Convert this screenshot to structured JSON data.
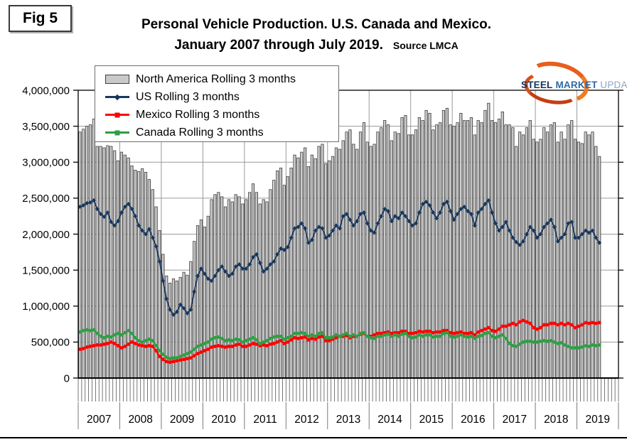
{
  "figure": {
    "label": "Fig 5"
  },
  "title": {
    "line1": "Personal Vehicle Production. U.S. Canada and Mexico.",
    "line2": "January 2007 through July 2019.",
    "source": "Source LMCA"
  },
  "logo": {
    "word1": "STEEL",
    "word2": "MARKET",
    "word3": "UPDATE",
    "navy": "#15335f",
    "blue": "#2f6aa8",
    "light_blue": "#8ea6c4",
    "orange": "#e95d1d",
    "dark_orange": "#c43e14"
  },
  "chart_data": {
    "type": "bar",
    "title": "Personal Vehicle Production. U.S. Canada and Mexico. January 2007 through July 2019.",
    "xlabel": "",
    "ylabel": "",
    "grid": true,
    "legend_position": "top-left",
    "ylim": [
      0,
      4000000
    ],
    "x_years": [
      "2007",
      "2008",
      "2009",
      "2010",
      "2011",
      "2012",
      "2013",
      "2014",
      "2015",
      "2016",
      "2017",
      "2018",
      "2019"
    ],
    "months_start": "2007-01",
    "months_end": "2019-07",
    "y_tick_values": [
      0,
      500000,
      1000000,
      1500000,
      2000000,
      2500000,
      3000000,
      3500000,
      4000000
    ],
    "y_ticks": [
      "0",
      "500,000",
      "1,000,000",
      "1,500,000",
      "2,000,000",
      "2,500,000",
      "3,000,000",
      "3,500,000",
      "4,000,000"
    ],
    "series": [
      {
        "name": "North America Rolling 3 months",
        "type": "bar",
        "color": "#c9c9c9",
        "edge": "#3f3f3f",
        "values": [
          3420000,
          3460000,
          3500000,
          3520000,
          3600000,
          3220000,
          3220000,
          3200000,
          3230000,
          3220000,
          3160000,
          3020000,
          3140000,
          3100000,
          3060000,
          2950000,
          2890000,
          2870000,
          2910000,
          2860000,
          2760000,
          2620000,
          2380000,
          2050000,
          1720000,
          1420000,
          1320000,
          1380000,
          1350000,
          1400000,
          1470000,
          1430000,
          1620000,
          1900000,
          2120000,
          2200000,
          2100000,
          2250000,
          2480000,
          2550000,
          2580000,
          2520000,
          2380000,
          2480000,
          2450000,
          2550000,
          2520000,
          2420000,
          2480000,
          2580000,
          2700000,
          2580000,
          2420000,
          2480000,
          2450000,
          2620000,
          2750000,
          2880000,
          2920000,
          2680000,
          2800000,
          2920000,
          3100000,
          3060000,
          3140000,
          3200000,
          2940000,
          3100000,
          3050000,
          3220000,
          3250000,
          2980000,
          3020000,
          3080000,
          3200000,
          3180000,
          3300000,
          3420000,
          3450000,
          3250000,
          3180000,
          3420000,
          3550000,
          3280000,
          3220000,
          3250000,
          3420000,
          3480000,
          3580000,
          3520000,
          3300000,
          3420000,
          3400000,
          3620000,
          3650000,
          3380000,
          3380000,
          3450000,
          3620000,
          3580000,
          3720000,
          3680000,
          3450000,
          3520000,
          3550000,
          3720000,
          3750000,
          3520000,
          3500000,
          3550000,
          3680000,
          3580000,
          3580000,
          3620000,
          3380000,
          3580000,
          3550000,
          3720000,
          3820000,
          3580000,
          3550000,
          3600000,
          3700000,
          3520000,
          3520000,
          3480000,
          3220000,
          3420000,
          3380000,
          3480000,
          3580000,
          3320000,
          3280000,
          3320000,
          3480000,
          3420000,
          3520000,
          3550000,
          3280000,
          3420000,
          3320000,
          3520000,
          3580000,
          3320000,
          3280000,
          3260000,
          3420000,
          3380000,
          3420000,
          3220000,
          3080000
        ]
      },
      {
        "name": "US Rolling 3 months",
        "type": "line",
        "color": "#17375e",
        "marker": "diamond",
        "values": [
          2380000,
          2400000,
          2430000,
          2440000,
          2470000,
          2350000,
          2280000,
          2240000,
          2300000,
          2170000,
          2120000,
          2180000,
          2300000,
          2380000,
          2420000,
          2350000,
          2250000,
          2120000,
          2050000,
          2000000,
          2070000,
          1950000,
          1830000,
          1620000,
          1350000,
          1100000,
          950000,
          880000,
          920000,
          1020000,
          970000,
          900000,
          950000,
          1200000,
          1420000,
          1520000,
          1450000,
          1380000,
          1350000,
          1420000,
          1500000,
          1550000,
          1480000,
          1420000,
          1450000,
          1550000,
          1580000,
          1520000,
          1520000,
          1580000,
          1680000,
          1720000,
          1600000,
          1480000,
          1520000,
          1580000,
          1620000,
          1720000,
          1800000,
          1780000,
          1820000,
          1950000,
          2080000,
          2100000,
          2150000,
          2080000,
          1880000,
          1920000,
          2050000,
          2100000,
          2080000,
          1950000,
          1980000,
          2050000,
          2120000,
          2080000,
          2250000,
          2280000,
          2200000,
          2120000,
          2180000,
          2280000,
          2300000,
          2150000,
          2050000,
          2020000,
          2150000,
          2250000,
          2350000,
          2320000,
          2180000,
          2250000,
          2220000,
          2300000,
          2250000,
          2180000,
          2120000,
          2150000,
          2300000,
          2420000,
          2450000,
          2400000,
          2300000,
          2220000,
          2300000,
          2420000,
          2450000,
          2320000,
          2200000,
          2280000,
          2350000,
          2380000,
          2320000,
          2280000,
          2120000,
          2300000,
          2350000,
          2420000,
          2470000,
          2300000,
          2150000,
          2050000,
          2100000,
          2170000,
          2050000,
          1950000,
          1890000,
          1850000,
          1900000,
          2000000,
          2100000,
          2050000,
          1950000,
          2000000,
          2100000,
          2150000,
          2200000,
          2100000,
          1900000,
          1950000,
          2000000,
          2150000,
          2170000,
          1950000,
          1950000,
          2000000,
          2050000,
          2020000,
          2050000,
          1950000,
          1880000
        ]
      },
      {
        "name": "Mexico Rolling 3 months",
        "type": "line",
        "color": "#ff0000",
        "marker": "square",
        "values": [
          400000,
          410000,
          430000,
          440000,
          450000,
          460000,
          460000,
          470000,
          480000,
          500000,
          480000,
          450000,
          420000,
          440000,
          470000,
          500000,
          480000,
          460000,
          450000,
          440000,
          450000,
          440000,
          380000,
          300000,
          260000,
          230000,
          220000,
          230000,
          240000,
          250000,
          260000,
          270000,
          280000,
          310000,
          340000,
          360000,
          380000,
          400000,
          430000,
          440000,
          450000,
          440000,
          430000,
          440000,
          440000,
          460000,
          470000,
          440000,
          440000,
          460000,
          480000,
          470000,
          450000,
          460000,
          450000,
          470000,
          480000,
          500000,
          520000,
          480000,
          500000,
          530000,
          560000,
          550000,
          560000,
          570000,
          530000,
          550000,
          540000,
          570000,
          580000,
          520000,
          520000,
          540000,
          560000,
          580000,
          580000,
          590000,
          560000,
          580000,
          580000,
          610000,
          620000,
          580000,
          580000,
          600000,
          620000,
          620000,
          630000,
          640000,
          620000,
          630000,
          630000,
          650000,
          650000,
          620000,
          620000,
          630000,
          650000,
          640000,
          650000,
          650000,
          630000,
          640000,
          640000,
          660000,
          660000,
          630000,
          620000,
          630000,
          640000,
          620000,
          620000,
          630000,
          600000,
          640000,
          660000,
          680000,
          700000,
          660000,
          650000,
          680000,
          720000,
          720000,
          740000,
          760000,
          740000,
          780000,
          800000,
          780000,
          760000,
          700000,
          680000,
          700000,
          740000,
          740000,
          760000,
          760000,
          740000,
          760000,
          740000,
          760000,
          740000,
          700000,
          720000,
          740000,
          770000,
          760000,
          770000,
          760000,
          770000
        ]
      },
      {
        "name": "Canada Rolling 3 months",
        "type": "line",
        "color": "#2e9e44",
        "marker": "square",
        "values": [
          640000,
          660000,
          670000,
          660000,
          670000,
          620000,
          580000,
          560000,
          580000,
          570000,
          600000,
          620000,
          600000,
          630000,
          660000,
          620000,
          560000,
          520000,
          500000,
          520000,
          540000,
          520000,
          450000,
          380000,
          330000,
          290000,
          270000,
          280000,
          280000,
          300000,
          320000,
          340000,
          360000,
          400000,
          440000,
          460000,
          480000,
          500000,
          540000,
          560000,
          570000,
          550000,
          520000,
          530000,
          520000,
          540000,
          530000,
          500000,
          520000,
          540000,
          560000,
          530000,
          480000,
          500000,
          520000,
          550000,
          570000,
          580000,
          580000,
          540000,
          560000,
          580000,
          620000,
          620000,
          630000,
          620000,
          580000,
          600000,
          580000,
          620000,
          630000,
          560000,
          560000,
          570000,
          600000,
          580000,
          600000,
          620000,
          580000,
          600000,
          580000,
          620000,
          630000,
          580000,
          560000,
          550000,
          580000,
          580000,
          600000,
          610000,
          580000,
          600000,
          580000,
          610000,
          620000,
          580000,
          560000,
          570000,
          600000,
          580000,
          600000,
          600000,
          570000,
          580000,
          580000,
          620000,
          630000,
          580000,
          570000,
          580000,
          600000,
          580000,
          570000,
          580000,
          550000,
          580000,
          590000,
          620000,
          630000,
          580000,
          560000,
          580000,
          600000,
          550000,
          480000,
          450000,
          440000,
          470000,
          500000,
          510000,
          510000,
          500000,
          500000,
          510000,
          520000,
          510000,
          520000,
          500000,
          480000,
          490000,
          460000,
          440000,
          420000,
          420000,
          420000,
          430000,
          450000,
          440000,
          460000,
          450000,
          460000
        ]
      }
    ]
  }
}
